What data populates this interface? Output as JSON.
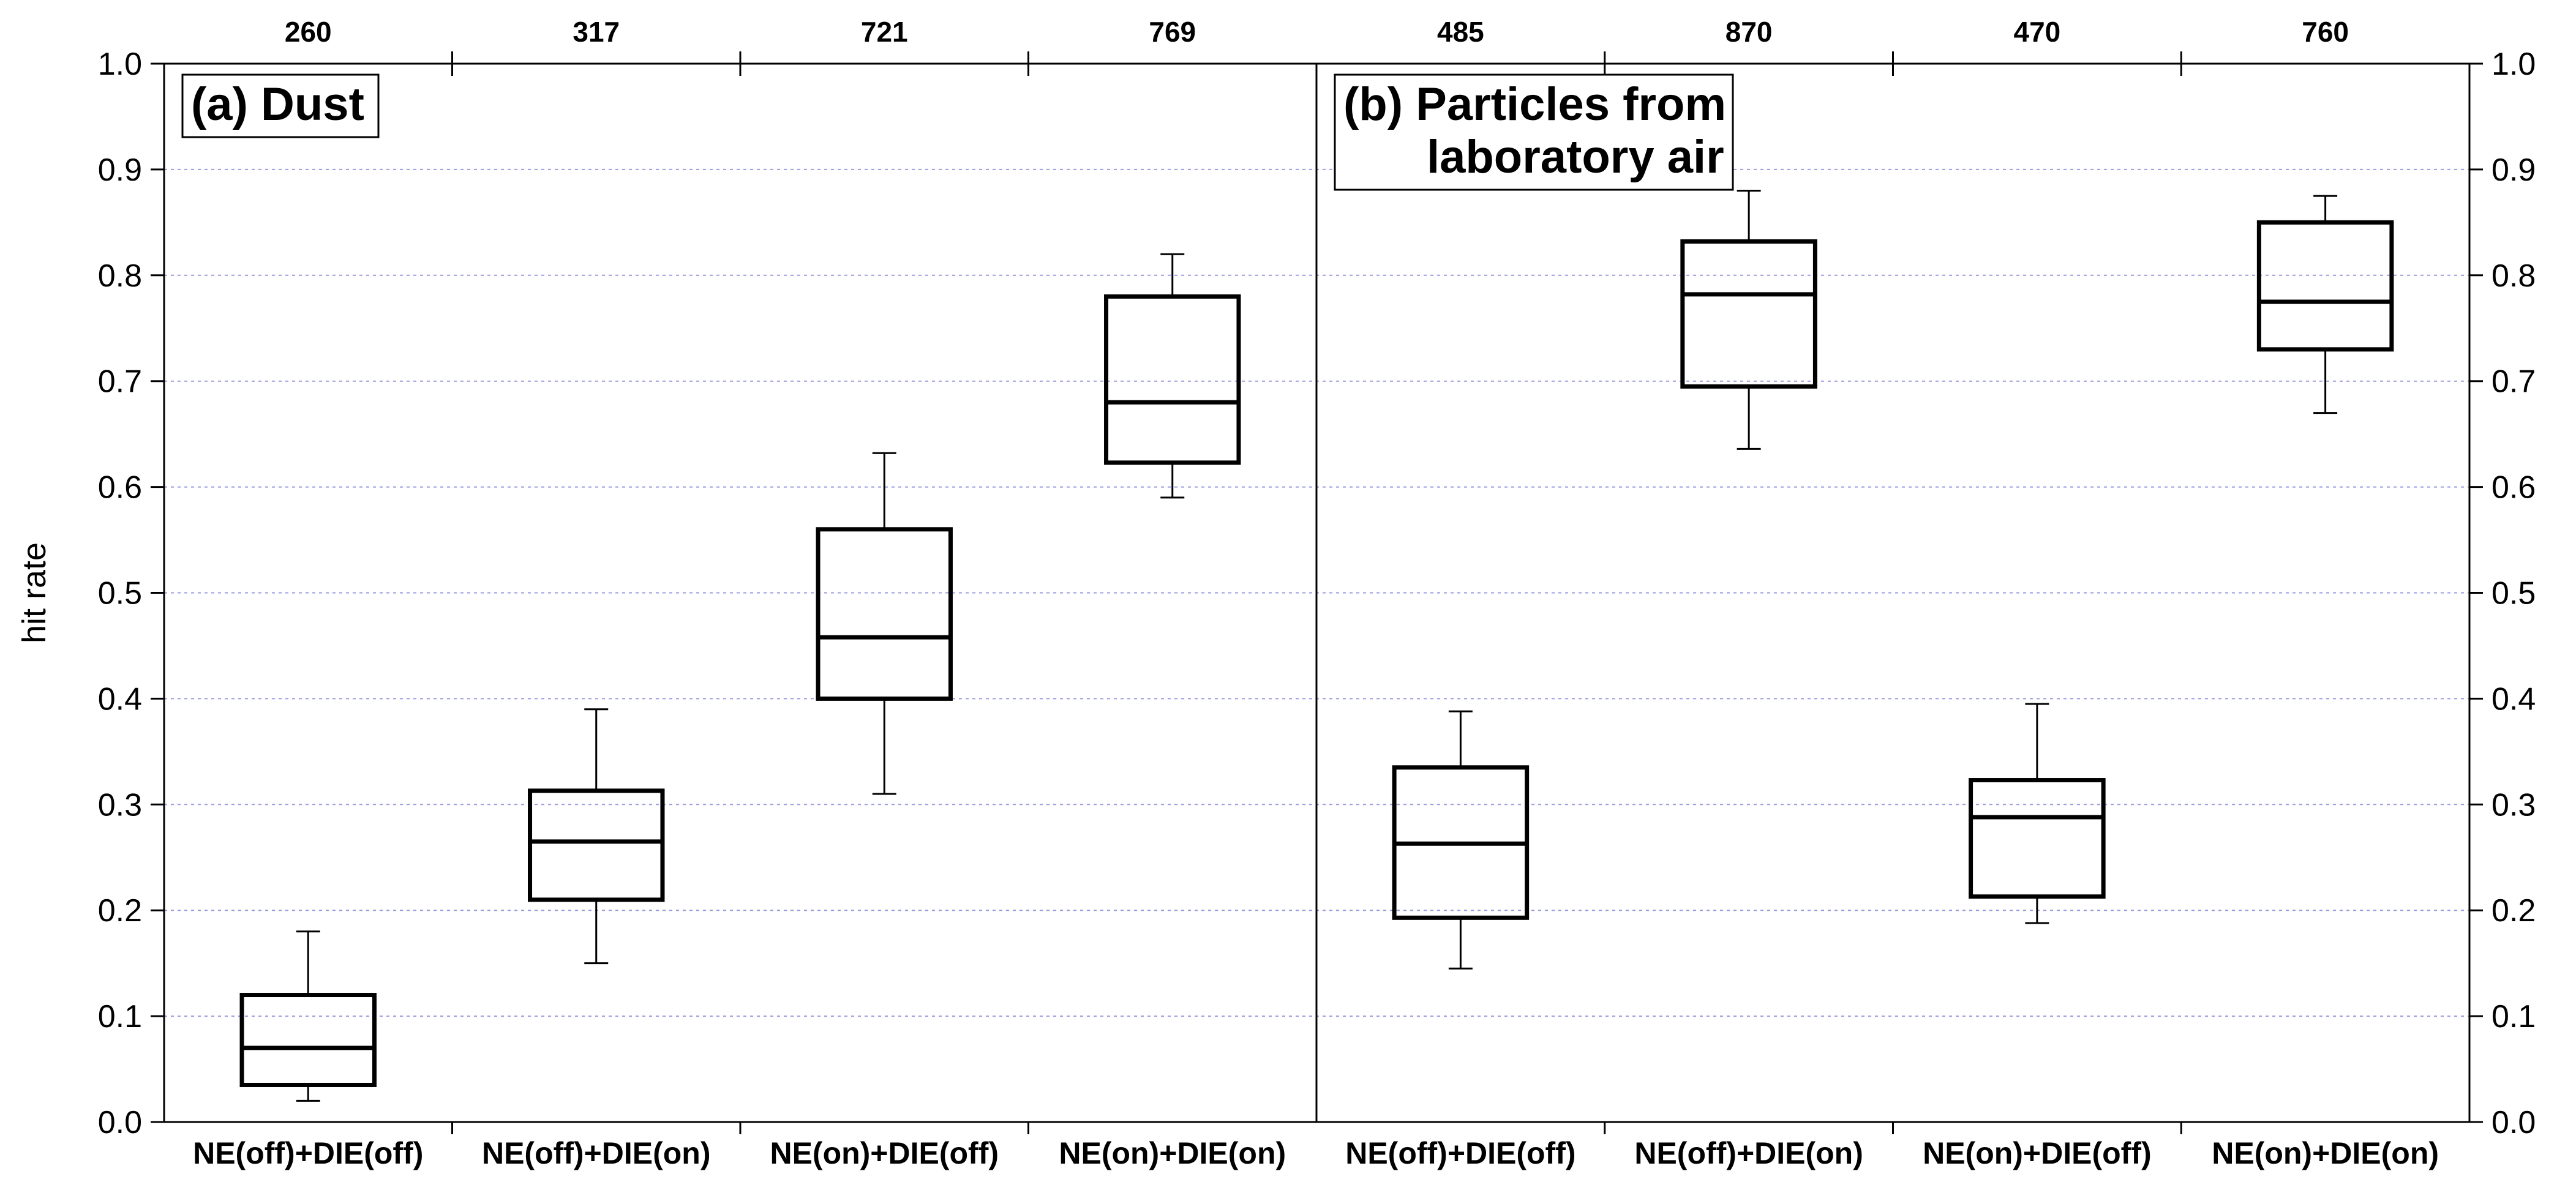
{
  "chart_data": {
    "type": "box",
    "ylabel": "hit rate",
    "ylim": [
      0.0,
      1.0
    ],
    "yticks": [
      "0.0",
      "0.1",
      "0.2",
      "0.3",
      "0.4",
      "0.5",
      "0.6",
      "0.7",
      "0.8",
      "0.9",
      "1.0"
    ],
    "grid": "horizontal dotted",
    "panels": [
      {
        "title_lines": [
          "(a)  Dust"
        ],
        "categories": [
          "NE(off)+DIE(off)",
          "NE(off)+DIE(on)",
          "NE(on)+DIE(off)",
          "NE(on)+DIE(on)"
        ],
        "counts": [
          "260",
          "317",
          "721",
          "769"
        ],
        "boxes": [
          {
            "whisker_low": 0.02,
            "q1": 0.035,
            "median": 0.07,
            "q3": 0.12,
            "whisker_high": 0.18
          },
          {
            "whisker_low": 0.15,
            "q1": 0.21,
            "median": 0.265,
            "q3": 0.313,
            "whisker_high": 0.39
          },
          {
            "whisker_low": 0.31,
            "q1": 0.4,
            "median": 0.458,
            "q3": 0.56,
            "whisker_high": 0.632
          },
          {
            "whisker_low": 0.59,
            "q1": 0.623,
            "median": 0.68,
            "q3": 0.78,
            "whisker_high": 0.82
          }
        ]
      },
      {
        "title_lines": [
          "(b)  Particles from",
          "laboratory air"
        ],
        "categories": [
          "NE(off)+DIE(off)",
          "NE(off)+DIE(on)",
          "NE(on)+DIE(off)",
          "NE(on)+DIE(on)"
        ],
        "counts": [
          "485",
          "870",
          "470",
          "760"
        ],
        "boxes": [
          {
            "whisker_low": 0.145,
            "q1": 0.193,
            "median": 0.263,
            "q3": 0.335,
            "whisker_high": 0.388
          },
          {
            "whisker_low": 0.636,
            "q1": 0.695,
            "median": 0.782,
            "q3": 0.832,
            "whisker_high": 0.88
          },
          {
            "whisker_low": 0.188,
            "q1": 0.213,
            "median": 0.288,
            "q3": 0.323,
            "whisker_high": 0.395
          },
          {
            "whisker_low": 0.67,
            "q1": 0.73,
            "median": 0.775,
            "q3": 0.85,
            "whisker_high": 0.875
          }
        ]
      }
    ]
  }
}
